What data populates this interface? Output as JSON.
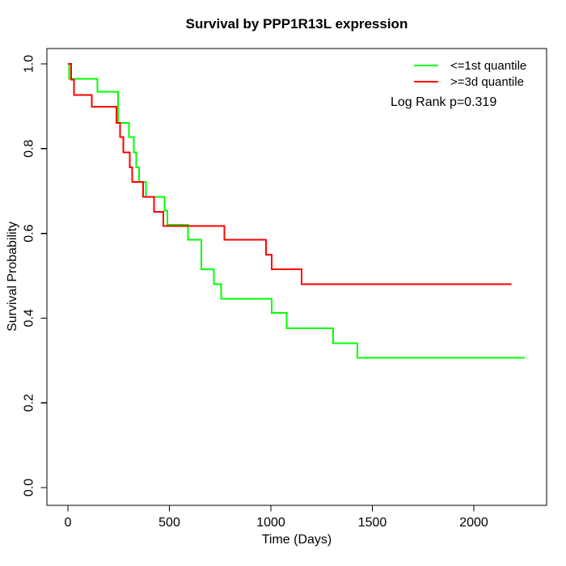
{
  "chart_data": {
    "type": "line",
    "subtype": "kaplan_meier_step_curve",
    "title": "Survival by PPP1R13L expression",
    "xlabel": "Time (Days)",
    "ylabel": "Survival Probability",
    "grid": false,
    "legend_position": "topright",
    "annotation": "Log Rank p=0.319",
    "xlim": [
      0,
      2250
    ],
    "ylim": [
      0.0,
      1.0
    ],
    "x_ticks": {
      "values": [
        0,
        500,
        1000,
        1500,
        2000
      ],
      "labels": [
        "0",
        "500",
        "1000",
        "1500",
        "2000"
      ]
    },
    "y_ticks": {
      "values": [
        0.0,
        0.2,
        0.4,
        0.6,
        0.8,
        1.0
      ],
      "labels": [
        "0.0",
        "0.2",
        "0.4",
        "0.6",
        "0.8",
        "1.0"
      ]
    },
    "series": [
      {
        "name": "<=1st quantile",
        "color": "#00ff00",
        "start": [
          0,
          1.0
        ],
        "steps": [
          [
            5,
            0.965
          ],
          [
            145,
            0.934
          ],
          [
            248,
            0.861
          ],
          [
            300,
            0.827
          ],
          [
            325,
            0.791
          ],
          [
            337,
            0.756
          ],
          [
            350,
            0.721
          ],
          [
            385,
            0.686
          ],
          [
            477,
            0.654
          ],
          [
            490,
            0.62
          ],
          [
            591,
            0.585
          ],
          [
            657,
            0.515
          ],
          [
            720,
            0.48
          ],
          [
            755,
            0.446
          ],
          [
            1004,
            0.412
          ],
          [
            1077,
            0.376
          ],
          [
            1307,
            0.341
          ],
          [
            1427,
            0.306
          ]
        ],
        "end_time": 2250,
        "final_value": 0.306
      },
      {
        "name": ">=3d quantile",
        "color": "#ff0000",
        "start": [
          0,
          1.0
        ],
        "steps": [
          [
            15,
            0.963
          ],
          [
            30,
            0.927
          ],
          [
            117,
            0.899
          ],
          [
            240,
            0.861
          ],
          [
            257,
            0.827
          ],
          [
            273,
            0.791
          ],
          [
            304,
            0.756
          ],
          [
            317,
            0.721
          ],
          [
            371,
            0.686
          ],
          [
            424,
            0.651
          ],
          [
            471,
            0.617
          ],
          [
            771,
            0.585
          ],
          [
            977,
            0.55
          ],
          [
            1004,
            0.515
          ],
          [
            1151,
            0.48
          ]
        ],
        "end_time": 2185,
        "final_value": 0.48
      }
    ]
  }
}
